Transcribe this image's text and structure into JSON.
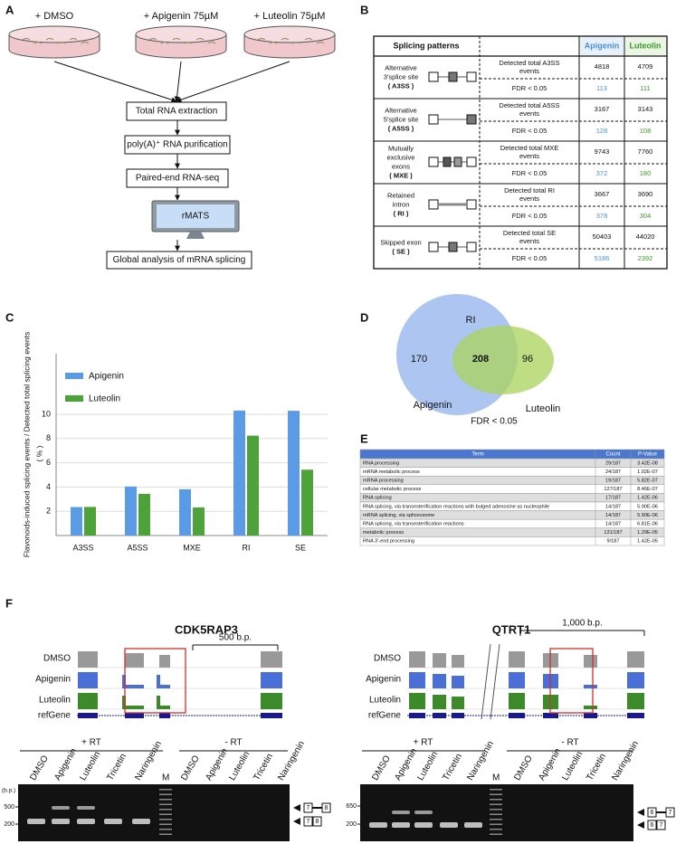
{
  "panel_letters": [
    "A",
    "B",
    "C",
    "D",
    "E",
    "F"
  ],
  "panel_a": {
    "treatments": [
      "+ DMSO",
      "+ Apigenin 75µM",
      "+ Luteolin 75µM"
    ],
    "steps": [
      "Total RNA extraction",
      "poly(A)⁺ RNA purification",
      "Paired-end RNA-seq",
      "rMATS",
      "Global analysis of mRNA splicing"
    ]
  },
  "panel_b": {
    "header": [
      "Splicing patterns",
      "Apigenin",
      "Luteolin"
    ],
    "rows": [
      {
        "name": [
          "Alternative",
          "3'splice site"
        ],
        "abbr": "( A3SS )",
        "total_label": [
          "Detected total A3SS",
          "events"
        ],
        "fdr_label": "FDR < 0.05",
        "total": [
          4818,
          4709
        ],
        "fdr": [
          113,
          111
        ]
      },
      {
        "name": [
          "Alternative",
          "5'splice site"
        ],
        "abbr": "( A5SS )",
        "total_label": [
          "Detected total A5SS",
          "events"
        ],
        "fdr_label": "FDR < 0.05",
        "total": [
          3167,
          3143
        ],
        "fdr": [
          128,
          108
        ]
      },
      {
        "name": [
          "Mutually",
          "exclusive",
          "exons"
        ],
        "abbr": "( MXE )",
        "total_label": [
          "Detected total MXE",
          "events"
        ],
        "fdr_label": "FDR < 0.05",
        "total": [
          9743,
          7760
        ],
        "fdr": [
          372,
          180
        ]
      },
      {
        "name": [
          "Retained",
          "intron"
        ],
        "abbr": "( RI )",
        "total_label": [
          "Detected total RI",
          "events"
        ],
        "fdr_label": "FDR < 0.05",
        "total": [
          3667,
          3690
        ],
        "fdr": [
          378,
          304
        ]
      },
      {
        "name": [
          "Skipped exon"
        ],
        "abbr": "( SE )",
        "total_label": [
          "Detected total SE",
          "events"
        ],
        "fdr_label": "FDR < 0.05",
        "total": [
          50403,
          44020
        ],
        "fdr": [
          5186,
          2392
        ]
      }
    ]
  },
  "chart_data": {
    "type": "bar",
    "ylabel": "Flavonoids-induced splicing events / Detected total splicing events",
    "ylabel_unit": "( % )",
    "categories": [
      "A3SS",
      "A5SS",
      "MXE",
      "RI",
      "SE"
    ],
    "series": [
      {
        "name": "Apigenin",
        "color": "#5b9be6",
        "values": [
          2.35,
          4.04,
          3.82,
          10.31,
          10.29
        ]
      },
      {
        "name": "Luteolin",
        "color": "#4ea23a",
        "values": [
          2.36,
          3.44,
          2.32,
          8.24,
          5.43
        ]
      }
    ],
    "ylim": [
      0,
      15
    ],
    "yticks": [
      2,
      4,
      6,
      8,
      10
    ],
    "grid": true
  },
  "panel_d": {
    "top": "RI",
    "left_only": 170,
    "both": 208,
    "right_only": 96,
    "left": "Apigenin",
    "right": "Luteolin",
    "note": "FDR < 0.05"
  },
  "panel_e": {
    "header": [
      "Term",
      "Count",
      "P-Value"
    ],
    "rows": [
      [
        "RNA processing",
        "29/187",
        "3.42E-08"
      ],
      [
        "mRNA metabolic process",
        "24/187",
        "1.02E-07"
      ],
      [
        "mRNA processing",
        "19/187",
        "5.82E-07"
      ],
      [
        "cellular metabolic process",
        "127/187",
        "8.46E-07"
      ],
      [
        "RNA splicing",
        "17/187",
        "1.42E-06"
      ],
      [
        "RNA splicing, via transesterification reactions with bulged adenosine as nucleophile",
        "14/187",
        "5.90E-06"
      ],
      [
        "mRNA splicing, via spliceosome",
        "14/187",
        "5.90E-06"
      ],
      [
        "RNA splicing, via transesterification reactions",
        "14/187",
        "6.81E-06"
      ],
      [
        "metabolic process",
        "131/187",
        "1.29E-05"
      ],
      [
        "RNA 3'-end processing",
        "9/187",
        "1.42E-05"
      ]
    ]
  },
  "panel_f": {
    "left": {
      "gene": "CDK5RAP3",
      "scale": "500 b.p.",
      "tracks": [
        "DMSO",
        "Apigenin",
        "Luteolin",
        "refGene"
      ],
      "rt": [
        "+ RT",
        "- RT"
      ],
      "lanes": [
        "DMSO",
        "Apigenin",
        "Luteolin",
        "Tricetin",
        "Naringenin",
        "M",
        "DMSO",
        "Apigenin",
        "Luteolin",
        "Tricetin",
        "Naringenin"
      ],
      "unit": "(b.p.)",
      "sizes": [
        "500",
        "200"
      ],
      "products": [
        [
          "7",
          "8"
        ],
        [
          "7",
          "8"
        ]
      ]
    },
    "right": {
      "gene": "QTRT1",
      "scale": "1,000 b.p.",
      "tracks": [
        "DMSO",
        "Apigenin",
        "Luteolin",
        "refGene"
      ],
      "rt": [
        "+ RT",
        "- RT"
      ],
      "lanes": [
        "DMSO",
        "Apigenin",
        "Luteolin",
        "Tricetin",
        "Naringenin",
        "M",
        "DMSO",
        "Apigenin",
        "Luteolin",
        "Tricetin",
        "Naringenin"
      ],
      "sizes": [
        "650",
        "200"
      ],
      "products": [
        [
          "6",
          "7"
        ],
        [
          "6",
          "7"
        ]
      ]
    }
  }
}
